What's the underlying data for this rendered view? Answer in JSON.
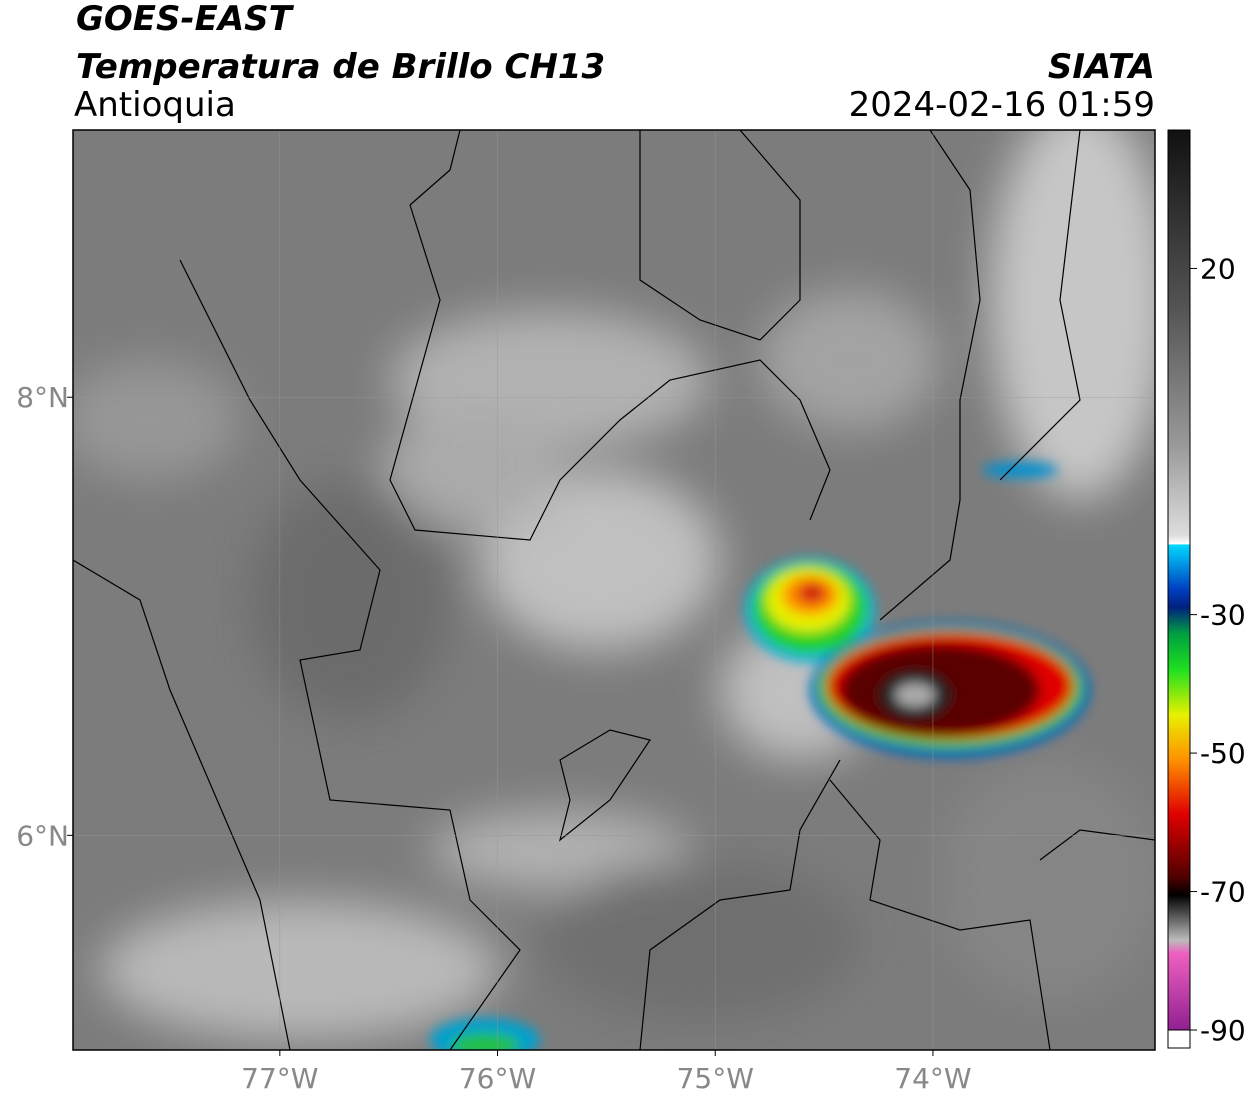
{
  "header": {
    "title": "GOES-EAST",
    "subtitle": "Temperatura de Brillo CH13",
    "region": "Antioquia",
    "source": "SIATA",
    "datetime": "2024-02-16 01:59"
  },
  "map": {
    "lonlim": [
      -77.95,
      -72.98
    ],
    "latlim": [
      5.02,
      9.22
    ],
    "xticks": [
      {
        "value": -77,
        "label": "77°W"
      },
      {
        "value": -76,
        "label": "76°W"
      },
      {
        "value": -75,
        "label": "75°W"
      },
      {
        "value": -74,
        "label": "74°W"
      }
    ],
    "yticks": [
      {
        "value": 8,
        "label": "8°N"
      },
      {
        "value": 6,
        "label": "6°N"
      }
    ],
    "grid": true
  },
  "colorbar": {
    "lim": [
      -90,
      40
    ],
    "ticks": [
      20,
      -30,
      -50,
      -70,
      -90
    ]
  }
}
